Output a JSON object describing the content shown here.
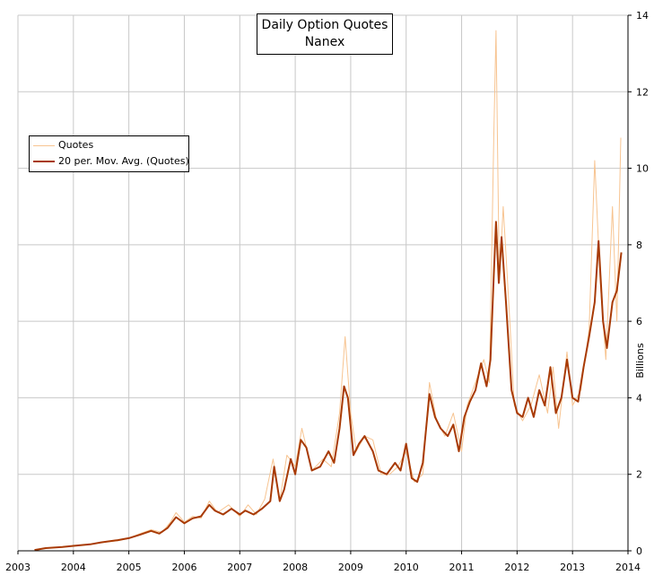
{
  "chart_data": {
    "type": "line",
    "title": "Daily Option Quotes",
    "subtitle": "Nanex",
    "ylabel": "Billions",
    "xlabel": "",
    "xlim": [
      2003,
      2014
    ],
    "ylim": [
      0,
      14
    ],
    "x_ticks": [
      "2003",
      "2004",
      "2005",
      "2006",
      "2007",
      "2008",
      "2009",
      "2010",
      "2011",
      "2012",
      "2013",
      "2014"
    ],
    "y_ticks": [
      "0",
      "2",
      "4",
      "6",
      "8",
      "10",
      "12",
      "14"
    ],
    "y_axis_side": "right",
    "grid": true,
    "legend_position": "top-left",
    "series": [
      {
        "name": "Quotes",
        "color": "#f7c491",
        "style": "thin",
        "points": [
          [
            2003.3,
            0.02
          ],
          [
            2003.5,
            0.07
          ],
          [
            2003.8,
            0.1
          ],
          [
            2004.0,
            0.13
          ],
          [
            2004.3,
            0.17
          ],
          [
            2004.5,
            0.22
          ],
          [
            2004.8,
            0.26
          ],
          [
            2005.0,
            0.33
          ],
          [
            2005.2,
            0.45
          ],
          [
            2005.4,
            0.55
          ],
          [
            2005.6,
            0.48
          ],
          [
            2005.75,
            0.75
          ],
          [
            2005.85,
            1.0
          ],
          [
            2006.0,
            0.75
          ],
          [
            2006.15,
            0.9
          ],
          [
            2006.3,
            0.85
          ],
          [
            2006.45,
            1.3
          ],
          [
            2006.6,
            1.0
          ],
          [
            2006.8,
            1.2
          ],
          [
            2007.0,
            0.9
          ],
          [
            2007.15,
            1.2
          ],
          [
            2007.3,
            0.95
          ],
          [
            2007.45,
            1.35
          ],
          [
            2007.6,
            2.4
          ],
          [
            2007.72,
            1.3
          ],
          [
            2007.85,
            2.5
          ],
          [
            2008.0,
            2.2
          ],
          [
            2008.12,
            3.2
          ],
          [
            2008.3,
            2.1
          ],
          [
            2008.5,
            2.4
          ],
          [
            2008.65,
            2.2
          ],
          [
            2008.8,
            3.6
          ],
          [
            2008.9,
            5.6
          ],
          [
            2009.0,
            3.6
          ],
          [
            2009.1,
            2.6
          ],
          [
            2009.25,
            3.0
          ],
          [
            2009.4,
            2.9
          ],
          [
            2009.55,
            2.0
          ],
          [
            2009.7,
            2.0
          ],
          [
            2009.85,
            2.2
          ],
          [
            2010.0,
            2.6
          ],
          [
            2010.15,
            1.8
          ],
          [
            2010.3,
            2.0
          ],
          [
            2010.42,
            4.4
          ],
          [
            2010.55,
            3.4
          ],
          [
            2010.7,
            3.0
          ],
          [
            2010.85,
            3.6
          ],
          [
            2011.0,
            2.6
          ],
          [
            2011.1,
            3.8
          ],
          [
            2011.25,
            4.4
          ],
          [
            2011.4,
            5.0
          ],
          [
            2011.5,
            4.4
          ],
          [
            2011.58,
            10.8
          ],
          [
            2011.62,
            13.6
          ],
          [
            2011.68,
            7.0
          ],
          [
            2011.75,
            9.0
          ],
          [
            2011.85,
            6.5
          ],
          [
            2011.95,
            3.8
          ],
          [
            2012.1,
            3.4
          ],
          [
            2012.25,
            3.8
          ],
          [
            2012.4,
            4.6
          ],
          [
            2012.55,
            3.6
          ],
          [
            2012.65,
            4.8
          ],
          [
            2012.75,
            3.2
          ],
          [
            2012.9,
            5.2
          ],
          [
            2013.0,
            3.8
          ],
          [
            2013.15,
            4.2
          ],
          [
            2013.3,
            5.8
          ],
          [
            2013.4,
            10.2
          ],
          [
            2013.5,
            7.0
          ],
          [
            2013.6,
            5.0
          ],
          [
            2013.72,
            9.0
          ],
          [
            2013.8,
            6.0
          ],
          [
            2013.87,
            10.8
          ]
        ]
      },
      {
        "name": "20 per. Mov. Avg. (Quotes)",
        "color": "#a83a05",
        "style": "thick",
        "points": [
          [
            2003.3,
            0.02
          ],
          [
            2003.5,
            0.07
          ],
          [
            2003.8,
            0.1
          ],
          [
            2004.0,
            0.13
          ],
          [
            2004.3,
            0.17
          ],
          [
            2004.5,
            0.22
          ],
          [
            2004.8,
            0.28
          ],
          [
            2005.0,
            0.33
          ],
          [
            2005.2,
            0.42
          ],
          [
            2005.4,
            0.52
          ],
          [
            2005.55,
            0.45
          ],
          [
            2005.7,
            0.6
          ],
          [
            2005.85,
            0.88
          ],
          [
            2006.0,
            0.72
          ],
          [
            2006.15,
            0.85
          ],
          [
            2006.3,
            0.9
          ],
          [
            2006.45,
            1.2
          ],
          [
            2006.55,
            1.05
          ],
          [
            2006.7,
            0.95
          ],
          [
            2006.85,
            1.1
          ],
          [
            2007.0,
            0.95
          ],
          [
            2007.1,
            1.05
          ],
          [
            2007.25,
            0.95
          ],
          [
            2007.4,
            1.1
          ],
          [
            2007.55,
            1.3
          ],
          [
            2007.62,
            2.2
          ],
          [
            2007.72,
            1.3
          ],
          [
            2007.8,
            1.6
          ],
          [
            2007.92,
            2.4
          ],
          [
            2008.0,
            2.0
          ],
          [
            2008.1,
            2.9
          ],
          [
            2008.2,
            2.7
          ],
          [
            2008.3,
            2.1
          ],
          [
            2008.45,
            2.2
          ],
          [
            2008.6,
            2.6
          ],
          [
            2008.7,
            2.3
          ],
          [
            2008.8,
            3.2
          ],
          [
            2008.88,
            4.3
          ],
          [
            2008.95,
            4.0
          ],
          [
            2009.05,
            2.5
          ],
          [
            2009.15,
            2.8
          ],
          [
            2009.25,
            3.0
          ],
          [
            2009.4,
            2.6
          ],
          [
            2009.5,
            2.1
          ],
          [
            2009.65,
            2.0
          ],
          [
            2009.8,
            2.3
          ],
          [
            2009.9,
            2.1
          ],
          [
            2010.0,
            2.8
          ],
          [
            2010.1,
            1.9
          ],
          [
            2010.2,
            1.8
          ],
          [
            2010.3,
            2.3
          ],
          [
            2010.42,
            4.1
          ],
          [
            2010.52,
            3.5
          ],
          [
            2010.62,
            3.2
          ],
          [
            2010.75,
            3.0
          ],
          [
            2010.85,
            3.3
          ],
          [
            2010.95,
            2.6
          ],
          [
            2011.05,
            3.5
          ],
          [
            2011.15,
            3.9
          ],
          [
            2011.25,
            4.2
          ],
          [
            2011.35,
            4.9
          ],
          [
            2011.45,
            4.3
          ],
          [
            2011.52,
            5.0
          ],
          [
            2011.58,
            7.2
          ],
          [
            2011.62,
            8.6
          ],
          [
            2011.67,
            7.0
          ],
          [
            2011.72,
            8.2
          ],
          [
            2011.8,
            6.5
          ],
          [
            2011.9,
            4.2
          ],
          [
            2012.0,
            3.6
          ],
          [
            2012.1,
            3.5
          ],
          [
            2012.2,
            4.0
          ],
          [
            2012.3,
            3.5
          ],
          [
            2012.4,
            4.2
          ],
          [
            2012.5,
            3.8
          ],
          [
            2012.6,
            4.8
          ],
          [
            2012.7,
            3.6
          ],
          [
            2012.8,
            4.0
          ],
          [
            2012.9,
            5.0
          ],
          [
            2013.0,
            4.0
          ],
          [
            2013.1,
            3.9
          ],
          [
            2013.2,
            4.8
          ],
          [
            2013.3,
            5.6
          ],
          [
            2013.4,
            6.5
          ],
          [
            2013.47,
            8.1
          ],
          [
            2013.55,
            6.0
          ],
          [
            2013.62,
            5.3
          ],
          [
            2013.72,
            6.5
          ],
          [
            2013.8,
            6.8
          ],
          [
            2013.88,
            7.8
          ]
        ]
      }
    ]
  }
}
